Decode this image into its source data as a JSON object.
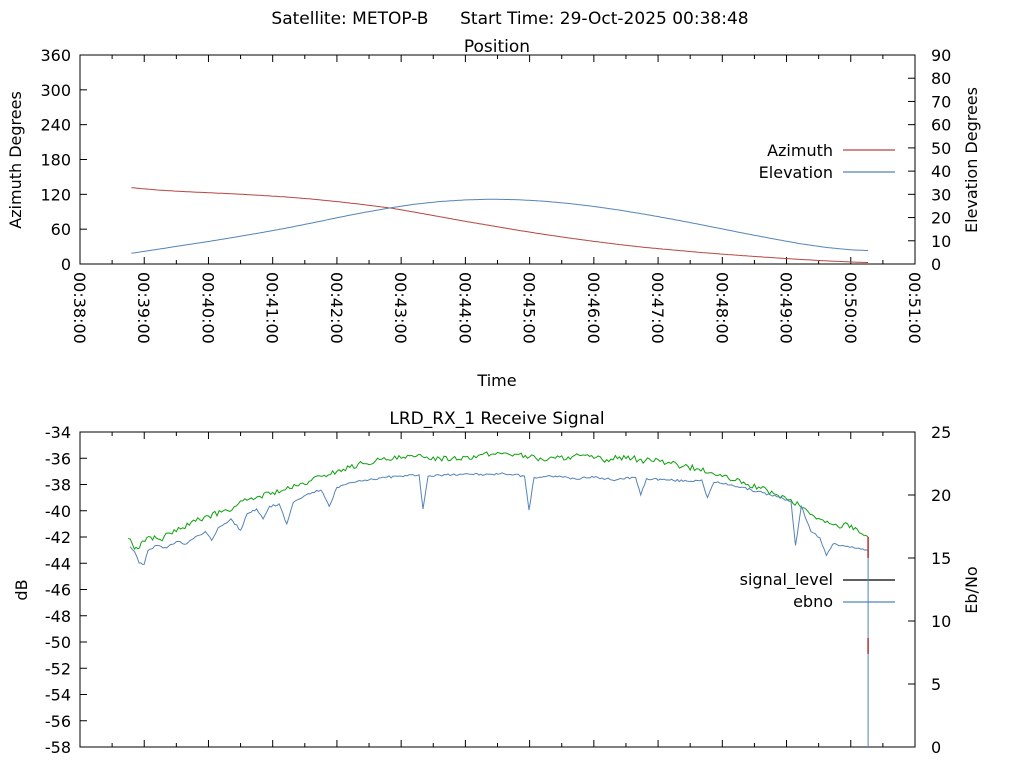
{
  "header": {
    "satellite_label": "Satellite: METOP-B",
    "start_time_label": "Start Time: 29-Oct-2025 00:38:48"
  },
  "colors": {
    "background": "#ffffff",
    "axis": "#000000",
    "azimuth": "#b8443f",
    "elevation": "#5584b8",
    "signal_line": "#0da10d",
    "signal_legend": "#000000",
    "ebno": "#5584b8",
    "artifact_red": "#b5403b"
  },
  "chart_data": [
    {
      "type": "line",
      "title": "Position",
      "xlabel": "Time",
      "x_axis": {
        "range_minutes": [
          0,
          13
        ],
        "tick_labels": [
          "00:38:00",
          "00:39:00",
          "00:40:00",
          "00:41:00",
          "00:42:00",
          "00:43:00",
          "00:44:00",
          "00:45:00",
          "00:46:00",
          "00:47:00",
          "00:48:00",
          "00:49:00",
          "00:50:00",
          "00:51:00"
        ],
        "minor_per_major": 2,
        "show_labels": true
      },
      "left_axis": {
        "label": "Azimuth Degrees",
        "range": [
          0,
          360
        ],
        "ticks": [
          0,
          60,
          120,
          180,
          240,
          300,
          360
        ]
      },
      "right_axis": {
        "label": "Elevation Degrees",
        "range": [
          0,
          90
        ],
        "ticks": [
          0,
          10,
          20,
          30,
          40,
          50,
          60,
          70,
          80,
          90
        ]
      },
      "legend": {
        "position": "right-middle",
        "entries": [
          {
            "label": "Azimuth"
          },
          {
            "label": "Elevation"
          }
        ]
      },
      "series": [
        {
          "name": "Azimuth",
          "axis": "left",
          "color_key": "azimuth",
          "noise": 0,
          "points": [
            [
              0.8,
              131.5
            ],
            [
              1.2,
              127.5
            ],
            [
              1.6,
              124.8
            ],
            [
              2.0,
              122.8
            ],
            [
              2.4,
              120.8
            ],
            [
              2.8,
              118.3
            ],
            [
              3.2,
              115.5
            ],
            [
              3.6,
              112.0
            ],
            [
              4.0,
              107.5
            ],
            [
              4.4,
              102.5
            ],
            [
              4.86,
              96.0
            ],
            [
              5.2,
              89.5
            ],
            [
              5.6,
              81.5
            ],
            [
              6.0,
              73.5
            ],
            [
              6.4,
              66.0
            ],
            [
              6.8,
              58.5
            ],
            [
              7.2,
              51.5
            ],
            [
              7.6,
              45.0
            ],
            [
              8.0,
              39.0
            ],
            [
              8.4,
              33.5
            ],
            [
              8.8,
              28.5
            ],
            [
              9.2,
              24.5
            ],
            [
              9.6,
              20.5
            ],
            [
              10.0,
              17.0
            ],
            [
              10.4,
              13.8
            ],
            [
              10.8,
              10.8
            ],
            [
              11.2,
              8.0
            ],
            [
              11.6,
              5.5
            ],
            [
              12.0,
              3.5
            ],
            [
              12.27,
              2.5
            ]
          ]
        },
        {
          "name": "Elevation",
          "axis": "right",
          "color_key": "elevation",
          "noise": 0,
          "points": [
            [
              0.8,
              4.6
            ],
            [
              1.2,
              6.3
            ],
            [
              1.6,
              8.0
            ],
            [
              2.0,
              9.7
            ],
            [
              2.4,
              11.5
            ],
            [
              2.8,
              13.4
            ],
            [
              3.2,
              15.4
            ],
            [
              3.6,
              17.6
            ],
            [
              4.0,
              19.9
            ],
            [
              4.4,
              22.1
            ],
            [
              4.86,
              24.3
            ],
            [
              5.2,
              25.7
            ],
            [
              5.6,
              26.9
            ],
            [
              6.0,
              27.6
            ],
            [
              6.4,
              27.9
            ],
            [
              6.8,
              27.7
            ],
            [
              7.2,
              27.1
            ],
            [
              7.6,
              26.1
            ],
            [
              8.0,
              24.8
            ],
            [
              8.4,
              23.2
            ],
            [
              8.8,
              21.4
            ],
            [
              9.2,
              19.4
            ],
            [
              9.6,
              17.3
            ],
            [
              10.0,
              15.1
            ],
            [
              10.4,
              12.9
            ],
            [
              10.8,
              10.8
            ],
            [
              11.2,
              8.8
            ],
            [
              11.6,
              7.2
            ],
            [
              12.0,
              6.1
            ],
            [
              12.27,
              5.8
            ]
          ]
        }
      ]
    },
    {
      "type": "line",
      "title": "LRD_RX_1 Receive Signal",
      "xlabel": "",
      "x_axis": {
        "range_minutes": [
          0,
          13
        ],
        "tick_labels": [],
        "minor_per_major": 2,
        "show_labels": false
      },
      "left_axis": {
        "label": "dB",
        "range": [
          -58,
          -34
        ],
        "ticks": [
          -58,
          -56,
          -54,
          -52,
          -50,
          -48,
          -46,
          -44,
          -42,
          -40,
          -38,
          -36,
          -34
        ]
      },
      "right_axis": {
        "label": "Eb/No",
        "range": [
          0,
          25
        ],
        "ticks": [
          0,
          5,
          10,
          15,
          20,
          25
        ]
      },
      "legend": {
        "position": "right-middle",
        "entries": [
          {
            "label": "signal_level"
          },
          {
            "label": "ebno"
          }
        ]
      },
      "series": [
        {
          "name": "signal_level",
          "axis": "left",
          "color_key": "signal_line",
          "legend_color_key": "signal_legend",
          "noise": 0.22,
          "points": [
            [
              0.75,
              -42.1
            ],
            [
              0.82,
              -42.6
            ],
            [
              0.9,
              -42.9
            ],
            [
              0.98,
              -42.3
            ],
            [
              1.1,
              -42.0
            ],
            [
              1.25,
              -42.2
            ],
            [
              1.4,
              -41.7
            ],
            [
              1.6,
              -41.3
            ],
            [
              1.8,
              -40.8
            ],
            [
              2.0,
              -40.4
            ],
            [
              2.2,
              -40.1
            ],
            [
              2.4,
              -39.7
            ],
            [
              2.6,
              -39.2
            ],
            [
              2.8,
              -38.9
            ],
            [
              3.0,
              -38.6
            ],
            [
              3.2,
              -38.4
            ],
            [
              3.4,
              -38.1
            ],
            [
              3.6,
              -37.7
            ],
            [
              3.8,
              -37.3
            ],
            [
              4.0,
              -37.0
            ],
            [
              4.2,
              -36.7
            ],
            [
              4.4,
              -36.4
            ],
            [
              4.6,
              -36.2
            ],
            [
              4.8,
              -36.1
            ],
            [
              5.0,
              -36.0
            ],
            [
              5.2,
              -35.9
            ],
            [
              5.4,
              -35.9
            ],
            [
              5.6,
              -36.0
            ],
            [
              5.8,
              -36.0
            ],
            [
              6.0,
              -35.9
            ],
            [
              6.2,
              -35.8
            ],
            [
              6.4,
              -35.7
            ],
            [
              6.6,
              -35.6
            ],
            [
              6.8,
              -35.7
            ],
            [
              7.0,
              -35.9
            ],
            [
              7.2,
              -36.1
            ],
            [
              7.4,
              -36.0
            ],
            [
              7.6,
              -35.9
            ],
            [
              7.8,
              -35.8
            ],
            [
              8.0,
              -36.0
            ],
            [
              8.2,
              -36.1
            ],
            [
              8.4,
              -35.9
            ],
            [
              8.6,
              -36.0
            ],
            [
              8.8,
              -36.2
            ],
            [
              9.0,
              -36.1
            ],
            [
              9.2,
              -36.4
            ],
            [
              9.4,
              -36.6
            ],
            [
              9.6,
              -36.8
            ],
            [
              9.8,
              -37.1
            ],
            [
              10.0,
              -37.4
            ],
            [
              10.2,
              -37.7
            ],
            [
              10.4,
              -38.0
            ],
            [
              10.6,
              -38.3
            ],
            [
              10.8,
              -38.7
            ],
            [
              11.0,
              -39.1
            ],
            [
              11.2,
              -39.6
            ],
            [
              11.4,
              -40.3
            ],
            [
              11.6,
              -40.9
            ],
            [
              11.8,
              -41.2
            ],
            [
              11.95,
              -41.0
            ],
            [
              12.1,
              -41.4
            ],
            [
              12.27,
              -42.0
            ]
          ]
        },
        {
          "name": "ebno",
          "axis": "right",
          "color_key": "ebno",
          "noise": 0.09,
          "points": [
            [
              0.78,
              15.9
            ],
            [
              0.85,
              15.5
            ],
            [
              0.92,
              14.6
            ],
            [
              1.0,
              14.5
            ],
            [
              1.06,
              15.6
            ],
            [
              1.2,
              16.0
            ],
            [
              1.35,
              15.8
            ],
            [
              1.5,
              16.3
            ],
            [
              1.65,
              16.1
            ],
            [
              1.8,
              16.7
            ],
            [
              1.95,
              17.1
            ],
            [
              2.05,
              16.4
            ],
            [
              2.15,
              17.4
            ],
            [
              2.35,
              18.1
            ],
            [
              2.5,
              17.2
            ],
            [
              2.6,
              18.5
            ],
            [
              2.75,
              18.9
            ],
            [
              2.85,
              18.1
            ],
            [
              2.95,
              19.1
            ],
            [
              3.1,
              19.3
            ],
            [
              3.22,
              17.7
            ],
            [
              3.32,
              19.4
            ],
            [
              3.55,
              20.1
            ],
            [
              3.75,
              20.4
            ],
            [
              3.88,
              19.1
            ],
            [
              4.0,
              20.6
            ],
            [
              4.25,
              21.0
            ],
            [
              4.5,
              21.2
            ],
            [
              4.75,
              21.4
            ],
            [
              5.0,
              21.5
            ],
            [
              5.28,
              21.6
            ],
            [
              5.34,
              18.9
            ],
            [
              5.42,
              21.5
            ],
            [
              5.7,
              21.6
            ],
            [
              6.0,
              21.7
            ],
            [
              6.3,
              21.6
            ],
            [
              6.6,
              21.7
            ],
            [
              6.92,
              21.5
            ],
            [
              6.99,
              18.8
            ],
            [
              7.07,
              21.4
            ],
            [
              7.4,
              21.5
            ],
            [
              7.7,
              21.3
            ],
            [
              8.0,
              21.4
            ],
            [
              8.35,
              21.2
            ],
            [
              8.65,
              21.4
            ],
            [
              8.73,
              20.0
            ],
            [
              8.82,
              21.3
            ],
            [
              9.15,
              21.2
            ],
            [
              9.45,
              21.1
            ],
            [
              9.68,
              21.2
            ],
            [
              9.77,
              19.8
            ],
            [
              9.87,
              21.0
            ],
            [
              10.15,
              20.8
            ],
            [
              10.45,
              20.4
            ],
            [
              10.75,
              20.0
            ],
            [
              10.95,
              19.7
            ],
            [
              11.07,
              19.5
            ],
            [
              11.14,
              16.0
            ],
            [
              11.23,
              19.1
            ],
            [
              11.38,
              17.1
            ],
            [
              11.52,
              16.6
            ],
            [
              11.62,
              15.2
            ],
            [
              11.72,
              16.1
            ],
            [
              11.88,
              16.0
            ],
            [
              12.02,
              15.9
            ],
            [
              12.16,
              15.7
            ],
            [
              12.27,
              15.6
            ],
            [
              12.27,
              0.0
            ]
          ]
        }
      ],
      "artifacts": [
        {
          "type": "vline",
          "t": 12.27,
          "axis": "left",
          "from_value": -42.0,
          "to_value": -43.6,
          "color_key": "artifact_red"
        },
        {
          "type": "vline",
          "t": 12.27,
          "axis": "left",
          "from_value": -49.7,
          "to_value": -50.9,
          "color_key": "artifact_red"
        }
      ]
    }
  ]
}
